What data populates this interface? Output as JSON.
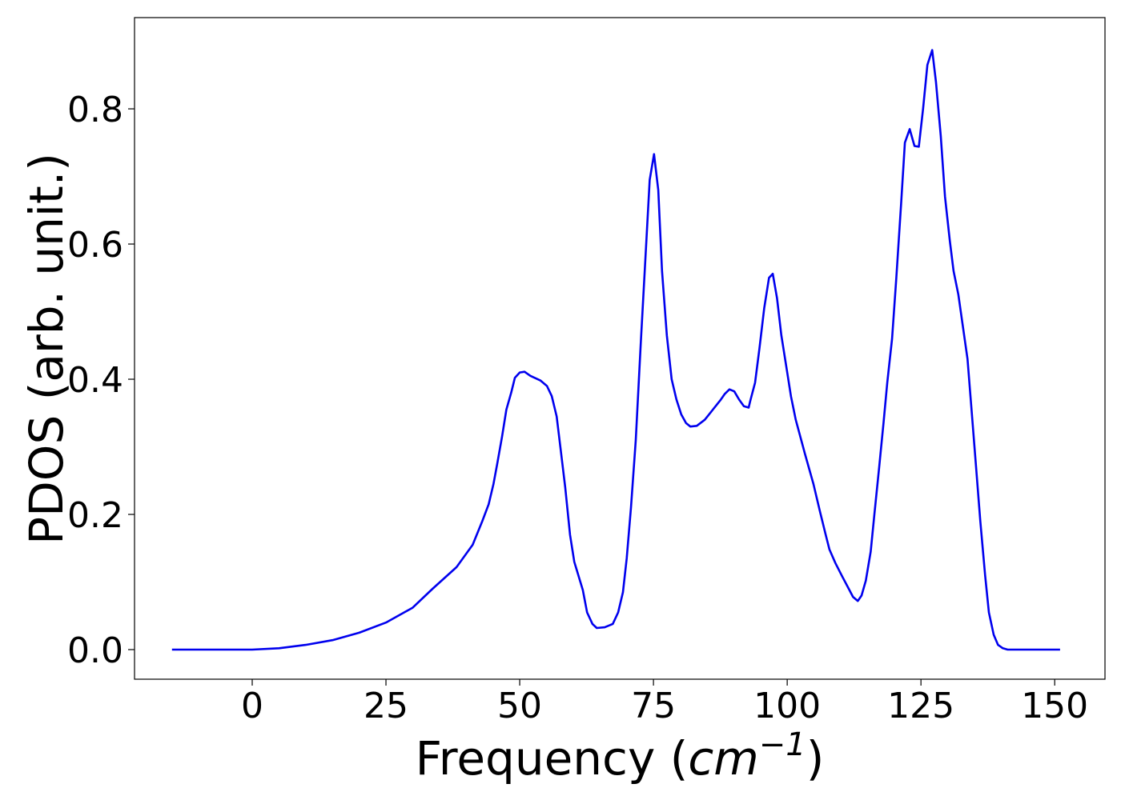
{
  "chart_data": {
    "type": "line",
    "xlabel": [
      "Frequency (",
      "cm",
      "−1",
      ")"
    ],
    "ylabel": "PDOS (arb. unit.)",
    "xlim": [
      -22,
      159.4
    ],
    "ylim": [
      -0.0438,
      0.935
    ],
    "xticks": [
      0,
      25,
      50,
      75,
      100,
      125,
      150
    ],
    "yticks": [
      {
        "value": 0,
        "label": "0.0"
      },
      {
        "value": 0.2,
        "label": "0.2"
      },
      {
        "value": 0.4,
        "label": "0.4"
      },
      {
        "value": 0.6,
        "label": "0.6"
      },
      {
        "value": 0.8,
        "label": "0.8"
      }
    ],
    "grid": false,
    "series": [
      {
        "color": "#0000ee",
        "x": [
          -15,
          0,
          5,
          10,
          15,
          20,
          25,
          30,
          33.7,
          38.2,
          41.2,
          43,
          44.2,
          45.1,
          45.8,
          46.7,
          47.5,
          48.4,
          49.1,
          50,
          50.9,
          52,
          53.9,
          55.1,
          56,
          56.9,
          57.6,
          58.5,
          59.4,
          60.2,
          61.8,
          62.6,
          63.6,
          64.4,
          65.9,
          67.4,
          68.4,
          69.3,
          70,
          70.8,
          71.7,
          72.6,
          73.5,
          74.3,
          75.1,
          75.9,
          76.6,
          77.5,
          78.4,
          79.3,
          80.2,
          81.1,
          81.9,
          83.1,
          84.6,
          86.1,
          87.6,
          88.3,
          89.2,
          90.1,
          91,
          91.9,
          92.8,
          93.1,
          94,
          94.8,
          95.7,
          96.6,
          97.3,
          98.1,
          98.9,
          99.9,
          100.7,
          101.6,
          103.3,
          104.9,
          106.1,
          107.2,
          107.9,
          109,
          110.3,
          111.5,
          112.3,
          113.2,
          113.9,
          114.7,
          115.6,
          116.3,
          117.2,
          118,
          118.7,
          119.6,
          120.4,
          121.3,
          122,
          122.9,
          123.8,
          124.6,
          125.4,
          126.2,
          127.1,
          127.8,
          128.7,
          129.5,
          130.4,
          131.1,
          132,
          132.8,
          133.7,
          134.4,
          135.3,
          136.1,
          137,
          137.7,
          138.6,
          139.4,
          140.3,
          141.2,
          151
        ],
        "values": [
          0,
          0,
          0.002,
          0.007,
          0.014,
          0.025,
          0.04,
          0.062,
          0.09,
          0.122,
          0.155,
          0.19,
          0.215,
          0.245,
          0.275,
          0.315,
          0.355,
          0.38,
          0.402,
          0.41,
          0.411,
          0.405,
          0.398,
          0.39,
          0.375,
          0.345,
          0.3,
          0.24,
          0.17,
          0.13,
          0.088,
          0.055,
          0.038,
          0.032,
          0.033,
          0.038,
          0.055,
          0.085,
          0.135,
          0.21,
          0.31,
          0.45,
          0.58,
          0.695,
          0.733,
          0.68,
          0.56,
          0.465,
          0.4,
          0.37,
          0.348,
          0.335,
          0.33,
          0.331,
          0.34,
          0.355,
          0.37,
          0.378,
          0.385,
          0.382,
          0.37,
          0.36,
          0.358,
          0.368,
          0.395,
          0.445,
          0.505,
          0.55,
          0.556,
          0.52,
          0.465,
          0.415,
          0.375,
          0.34,
          0.29,
          0.245,
          0.205,
          0.17,
          0.148,
          0.128,
          0.108,
          0.09,
          0.078,
          0.072,
          0.08,
          0.102,
          0.145,
          0.2,
          0.27,
          0.335,
          0.395,
          0.46,
          0.55,
          0.66,
          0.75,
          0.77,
          0.745,
          0.744,
          0.8,
          0.865,
          0.887,
          0.84,
          0.76,
          0.67,
          0.605,
          0.56,
          0.525,
          0.48,
          0.43,
          0.36,
          0.27,
          0.19,
          0.11,
          0.055,
          0.022,
          0.007,
          0.002,
          0,
          0
        ]
      }
    ]
  }
}
